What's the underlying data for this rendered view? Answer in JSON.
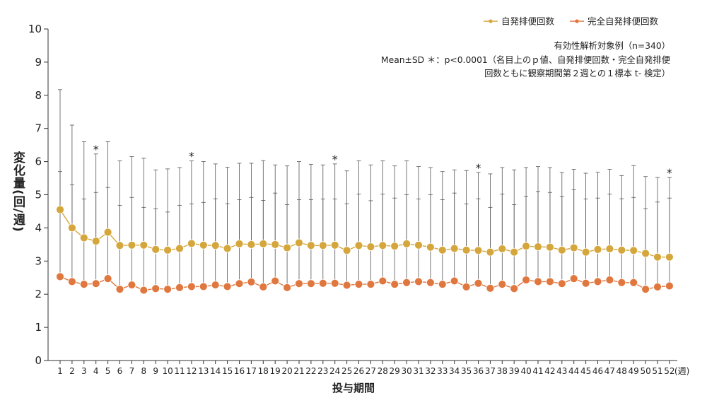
{
  "chart_data": {
    "type": "line",
    "x": [
      1,
      2,
      3,
      4,
      5,
      6,
      7,
      8,
      9,
      10,
      11,
      12,
      13,
      14,
      15,
      16,
      17,
      18,
      19,
      20,
      21,
      22,
      23,
      24,
      25,
      26,
      27,
      28,
      29,
      30,
      31,
      32,
      33,
      34,
      35,
      36,
      37,
      38,
      39,
      40,
      41,
      42,
      43,
      44,
      45,
      46,
      47,
      48,
      49,
      50,
      51,
      52
    ],
    "x_unit": "(週)",
    "xlabel": "投与期間",
    "ylabel": "変化量(回/週)",
    "ylim": [
      0,
      10
    ],
    "yticks": [
      0,
      1,
      2,
      3,
      4,
      5,
      6,
      7,
      8,
      9,
      10
    ],
    "series": [
      {
        "name": "自発排便回数",
        "color": "#d4a63c",
        "values": [
          4.55,
          4.0,
          3.7,
          3.6,
          3.87,
          3.47,
          3.48,
          3.48,
          3.35,
          3.33,
          3.38,
          3.53,
          3.48,
          3.47,
          3.38,
          3.52,
          3.5,
          3.52,
          3.5,
          3.4,
          3.55,
          3.47,
          3.47,
          3.48,
          3.32,
          3.47,
          3.43,
          3.47,
          3.45,
          3.52,
          3.48,
          3.42,
          3.33,
          3.38,
          3.33,
          3.32,
          3.27,
          3.37,
          3.27,
          3.45,
          3.43,
          3.42,
          3.33,
          3.4,
          3.27,
          3.35,
          3.37,
          3.33,
          3.32,
          3.23,
          3.12,
          3.12
        ],
        "sd_upper": [
          8.17,
          7.1,
          6.6,
          6.23,
          6.6,
          6.02,
          6.15,
          6.1,
          5.75,
          5.78,
          5.82,
          6.02,
          6.0,
          5.93,
          5.83,
          5.95,
          5.95,
          6.03,
          5.9,
          5.87,
          6.0,
          5.92,
          5.9,
          5.93,
          5.72,
          6.02,
          5.9,
          6.02,
          5.87,
          6.02,
          5.85,
          5.82,
          5.7,
          5.75,
          5.73,
          5.67,
          5.63,
          5.82,
          5.75,
          5.82,
          5.85,
          5.82,
          5.67,
          5.77,
          5.65,
          5.68,
          5.77,
          5.58,
          5.88,
          5.55,
          5.52,
          5.52
        ]
      },
      {
        "name": "完全自発排便回数",
        "color": "#e0773f",
        "values": [
          2.53,
          2.38,
          2.3,
          2.32,
          2.47,
          2.15,
          2.28,
          2.12,
          2.17,
          2.15,
          2.2,
          2.23,
          2.23,
          2.28,
          2.23,
          2.32,
          2.37,
          2.22,
          2.4,
          2.2,
          2.32,
          2.32,
          2.33,
          2.33,
          2.27,
          2.3,
          2.3,
          2.4,
          2.3,
          2.35,
          2.38,
          2.35,
          2.3,
          2.4,
          2.22,
          2.33,
          2.18,
          2.3,
          2.17,
          2.43,
          2.38,
          2.38,
          2.32,
          2.47,
          2.33,
          2.38,
          2.43,
          2.35,
          2.35,
          2.15,
          2.22,
          2.25
        ],
        "sd_upper": [
          5.7,
          5.3,
          4.87,
          5.07,
          5.22,
          4.68,
          4.92,
          4.62,
          4.58,
          4.48,
          4.68,
          4.72,
          4.77,
          4.88,
          4.73,
          4.85,
          4.92,
          4.83,
          5.05,
          4.7,
          4.85,
          4.85,
          4.87,
          4.87,
          4.73,
          5.02,
          4.82,
          5.02,
          4.9,
          5.0,
          4.87,
          5.0,
          4.85,
          5.05,
          4.72,
          4.88,
          4.62,
          5.02,
          4.7,
          4.95,
          5.1,
          5.07,
          4.95,
          5.15,
          4.87,
          4.9,
          5.02,
          4.88,
          4.92,
          4.58,
          4.78,
          4.9
        ]
      }
    ],
    "significance_marks": [
      {
        "x": 4,
        "label": "*"
      },
      {
        "x": 12,
        "label": "*"
      },
      {
        "x": 24,
        "label": "*"
      },
      {
        "x": 36,
        "label": "*"
      },
      {
        "x": 52,
        "label": "*"
      }
    ],
    "grid": false,
    "legend_position": "top-right"
  },
  "notes": {
    "line1": "有効性解析対象例（n=340）",
    "line2": "Mean±SD ＊：p<0.0001（名目上のｐ値、自発排便回数・完全自発排便",
    "line3": "回数ともに観察期間第２週との１標本 t- 検定）"
  }
}
